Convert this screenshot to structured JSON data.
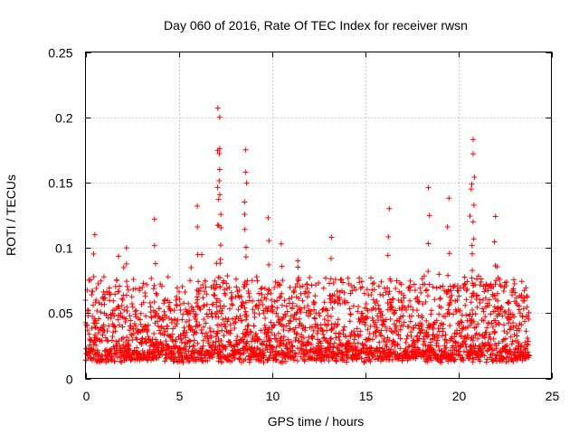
{
  "chart_data": {
    "type": "scatter",
    "title": "Day 060 of 2016, Rate Of TEC Index for receiver rwsn",
    "xlabel": "GPS time / hours",
    "ylabel": "ROTI / TECUs",
    "xlim": [
      0,
      25
    ],
    "ylim": [
      0,
      0.25
    ],
    "xticks": [
      0,
      5,
      10,
      15,
      20,
      25
    ],
    "yticks": [
      0,
      0.05,
      0.1,
      0.15,
      0.2,
      0.25
    ],
    "xtick_labels": [
      "0",
      "5",
      "10",
      "15",
      "20",
      "25"
    ],
    "ytick_labels": [
      "0",
      "0.05",
      "0.1",
      "0.15",
      "0.2",
      "0.25"
    ],
    "grid": true,
    "marker": "+",
    "series": [
      {
        "name": "ROTI",
        "color": "#ff0000",
        "x_range": [
          0,
          23.8
        ],
        "baseline_range": [
          0.01,
          0.065
        ],
        "note": "dense cloud of several thousand samples; notable peaks listed below",
        "peaks": [
          {
            "x": 0.5,
            "y": 0.11
          },
          {
            "x": 2.2,
            "y": 0.1
          },
          {
            "x": 3.7,
            "y": 0.122
          },
          {
            "x": 6.0,
            "y": 0.132
          },
          {
            "x": 7.1,
            "y": 0.207
          },
          {
            "x": 7.2,
            "y": 0.2
          },
          {
            "x": 7.2,
            "y": 0.176
          },
          {
            "x": 7.2,
            "y": 0.16
          },
          {
            "x": 8.6,
            "y": 0.175
          },
          {
            "x": 8.6,
            "y": 0.158
          },
          {
            "x": 9.8,
            "y": 0.123
          },
          {
            "x": 10.5,
            "y": 0.103
          },
          {
            "x": 13.2,
            "y": 0.108
          },
          {
            "x": 16.3,
            "y": 0.13
          },
          {
            "x": 18.4,
            "y": 0.146
          },
          {
            "x": 19.5,
            "y": 0.138
          },
          {
            "x": 20.8,
            "y": 0.183
          },
          {
            "x": 20.8,
            "y": 0.172
          },
          {
            "x": 20.7,
            "y": 0.145
          },
          {
            "x": 22.0,
            "y": 0.124
          }
        ]
      }
    ]
  }
}
